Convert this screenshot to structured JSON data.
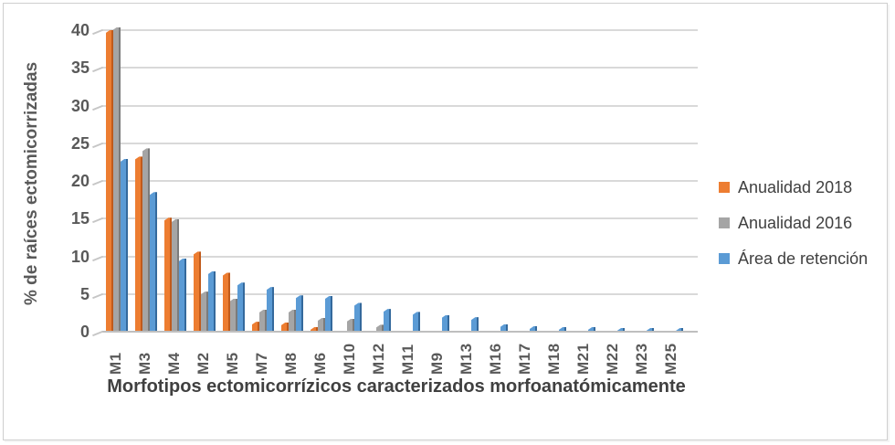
{
  "chart_data": {
    "type": "bar",
    "title": "",
    "xlabel": "Morfotipos ectomicorrízicos caracterizados morfoanatómicamente",
    "ylabel": "% de raíces ectomicorrizadas",
    "categories": [
      "M1",
      "M3",
      "M4",
      "M2",
      "M5",
      "M7",
      "M8",
      "M6",
      "M10",
      "M12",
      "M11",
      "M9",
      "M13",
      "M16",
      "M17",
      "M18",
      "M21",
      "M22",
      "M23",
      "M25"
    ],
    "series": [
      {
        "name": "Anualidad 2018",
        "color": "#ED7D31",
        "edge_color": "#C05A1B",
        "values": [
          39.9,
          23.1,
          15.0,
          10.5,
          7.7,
          1.2,
          1.1,
          0.5,
          0,
          0,
          0,
          0,
          0,
          0,
          0,
          0,
          0,
          0,
          0,
          0
        ]
      },
      {
        "name": "Anualidad 2016",
        "color": "#A5A5A5",
        "edge_color": "#7B7B7B",
        "values": [
          40.3,
          24.2,
          14.8,
          5.2,
          4.3,
          2.8,
          2.8,
          1.7,
          1.6,
          0.8,
          0,
          0,
          0,
          0,
          0,
          0,
          0,
          0,
          0,
          0
        ]
      },
      {
        "name": "Área de retención",
        "color": "#5B9BD5",
        "edge_color": "#34699C",
        "values": [
          22.8,
          18.4,
          9.6,
          7.9,
          6.4,
          5.8,
          4.7,
          4.6,
          3.7,
          2.9,
          2.5,
          2.1,
          1.8,
          0.9,
          0.6,
          0.5,
          0.5,
          0.4,
          0.4,
          0.3
        ]
      }
    ],
    "ylim": [
      0,
      40
    ],
    "yticks": [
      0,
      5,
      10,
      15,
      20,
      25,
      30,
      35,
      40
    ],
    "grid": true,
    "legend_position": "right",
    "gridline_color": "#D9D9D9",
    "axis_color": "#BFBFBF",
    "tick_label_color": "#595959",
    "axis_title_color": "#404040"
  }
}
